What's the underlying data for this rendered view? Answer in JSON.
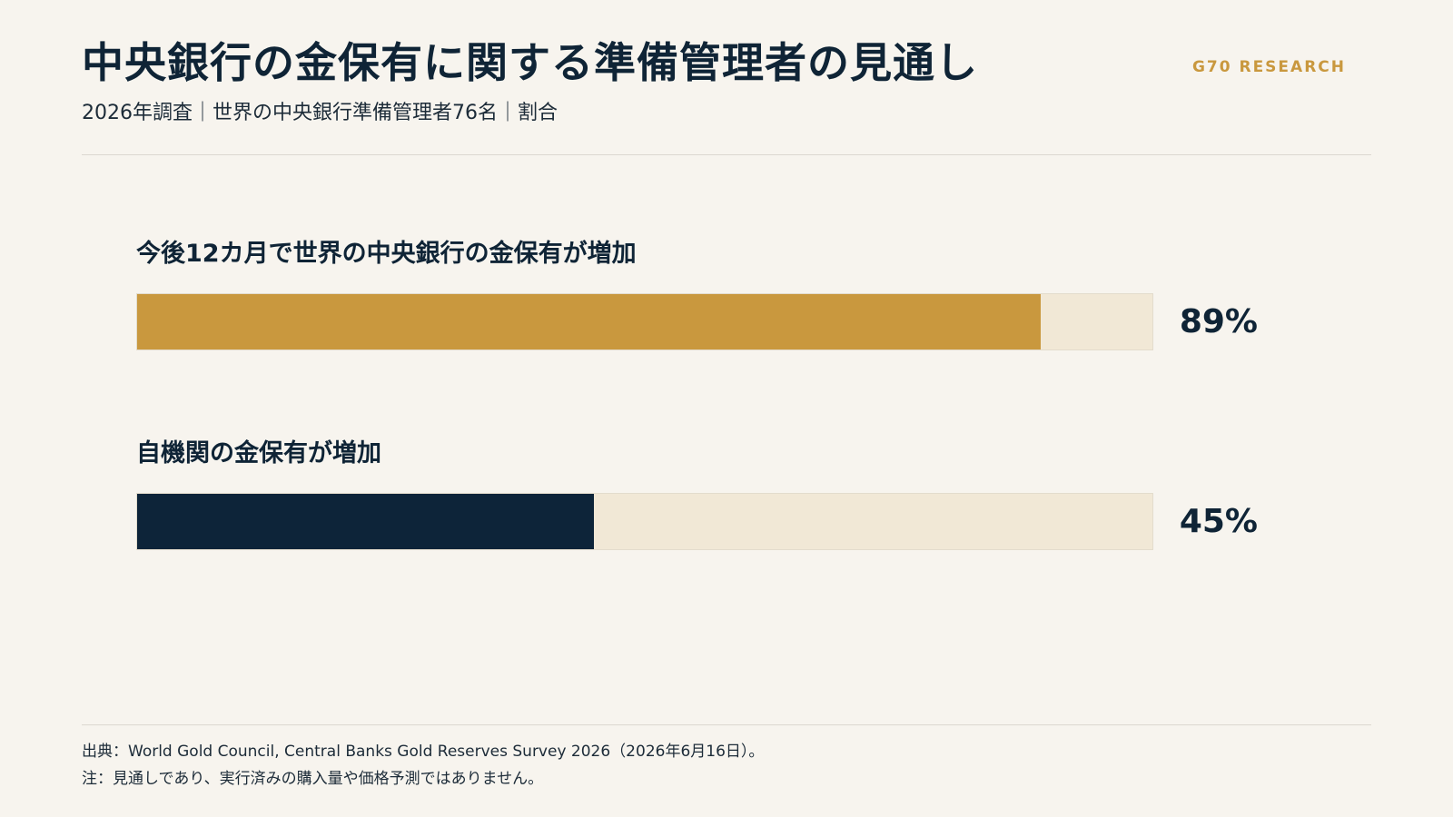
{
  "header": {
    "title": "中央銀行の金保有に関する準備管理者の見通し",
    "subtitle": "2026年調査｜世界の中央銀行準備管理者76名｜割合",
    "brand": "G70 RESEARCH"
  },
  "colors": {
    "gold": "#c9983e",
    "navy": "#0d2439",
    "track": "#f1e8d6"
  },
  "chart_data": {
    "type": "bar",
    "orientation": "horizontal",
    "categories": [
      "今後12カ月で世界の中央銀行の金保有が増加",
      "自機関の金保有が増加"
    ],
    "values": [
      89,
      45
    ],
    "value_labels": [
      "89%",
      "45%"
    ],
    "xlim": [
      0,
      100
    ],
    "grid": false
  },
  "footer": {
    "source": "出典：World Gold Council, Central Banks Gold Reserves Survey 2026（2026年6月16日）。",
    "note": "注：見通しであり、実行済みの購入量や価格予測ではありません。"
  }
}
